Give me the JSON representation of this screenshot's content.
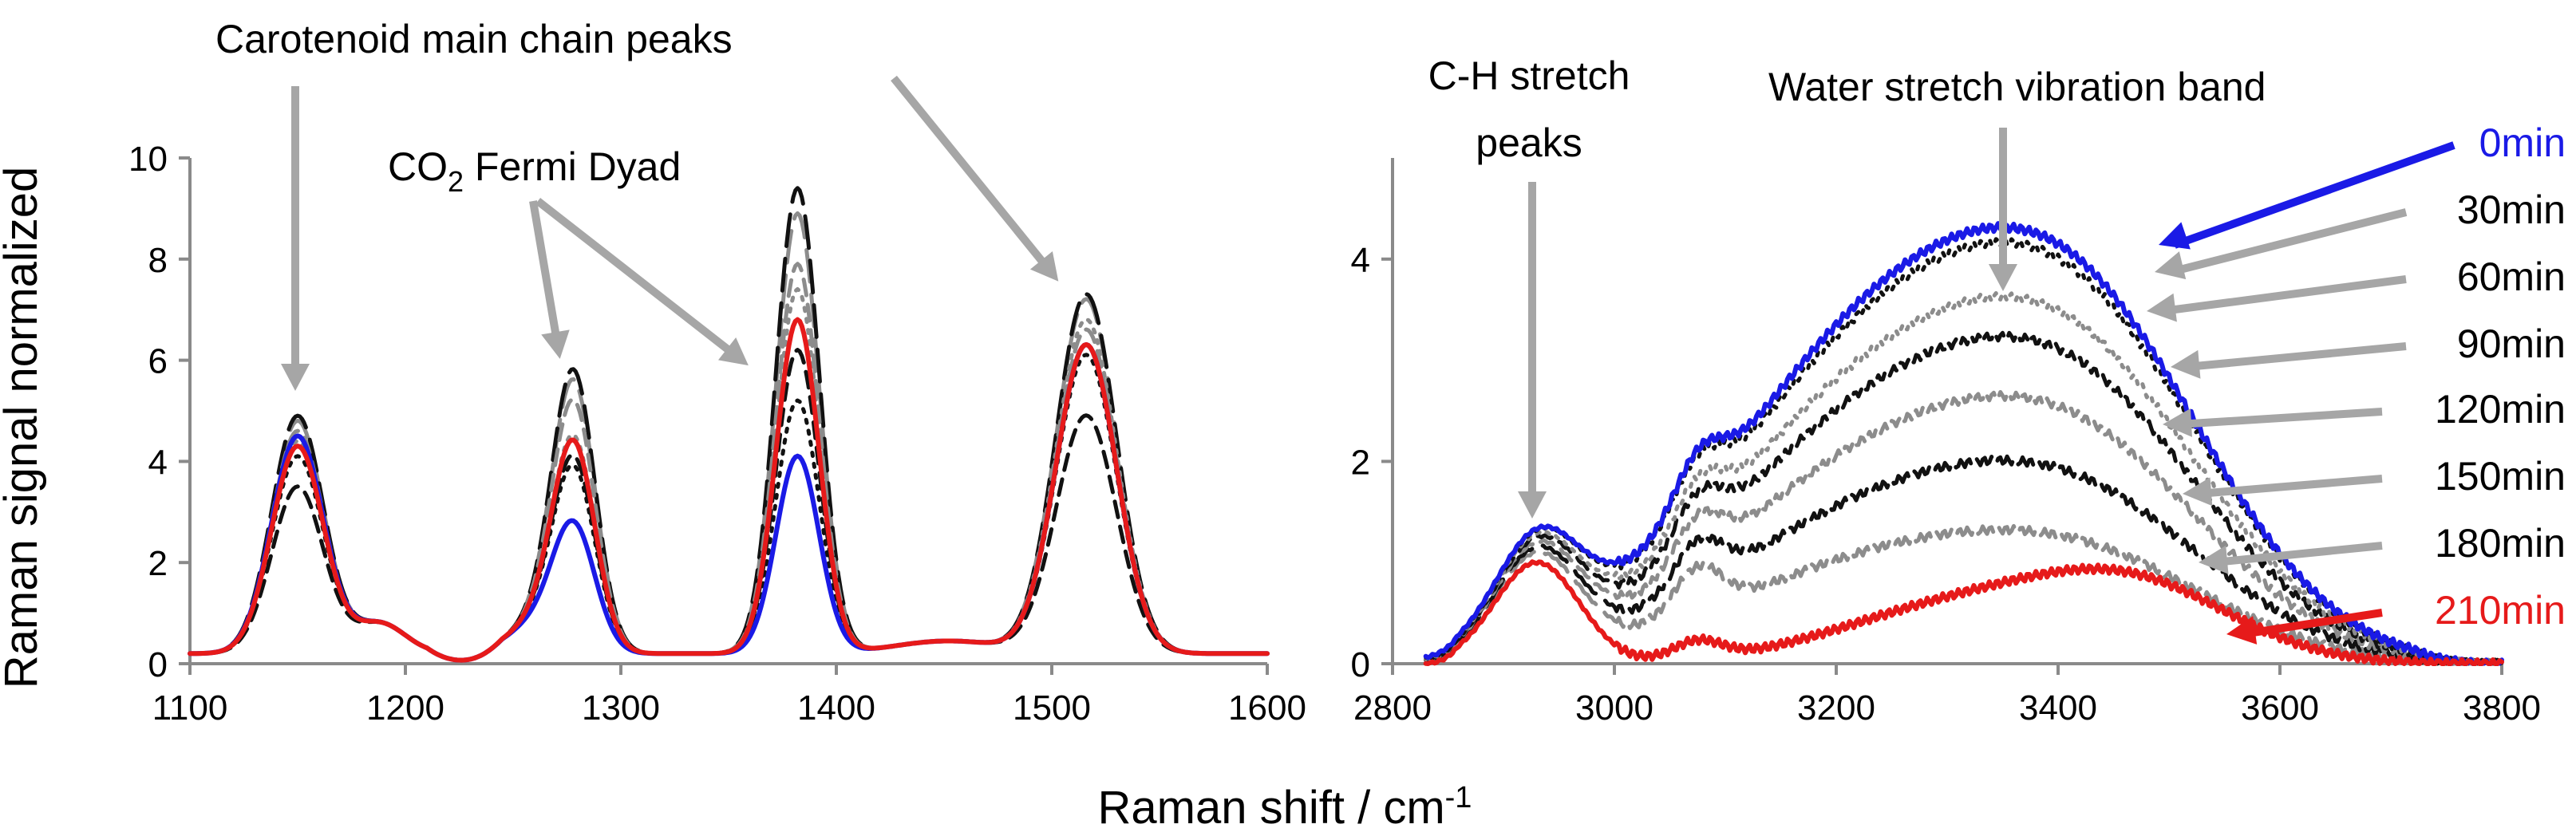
{
  "figure": {
    "y_axis_title": "Raman signal normalized",
    "x_axis_title": "Raman shift / cm",
    "x_axis_title_sup": "-1"
  },
  "colors": {
    "blue": "#1a1ae6",
    "red": "#e61a1a",
    "black": "#111111",
    "gray": "#8c8c8c",
    "arrow": "#a6a6a6"
  },
  "annotations": {
    "carotenoid": "Carotenoid main chain peaks",
    "co2_prefix": "CO",
    "co2_sub": "2",
    "co2_suffix": " Fermi Dyad",
    "ch_line1": "C-H stretch",
    "ch_line2": "peaks",
    "water": "Water stretch vibration band"
  },
  "chart_data": [
    {
      "type": "line",
      "title": "",
      "xlabel": "Raman shift / cm-1",
      "ylabel": "Raman signal normalized",
      "xlim": [
        1100,
        1600
      ],
      "ylim": [
        0,
        10
      ],
      "x_ticks": [
        1100,
        1200,
        1300,
        1400,
        1500,
        1600
      ],
      "y_ticks": [
        0,
        2,
        4,
        6,
        8,
        10
      ],
      "peaks_cm": [
        1150,
        1278,
        1382,
        1516
      ],
      "series": [
        {
          "name": "0min",
          "color": "blue",
          "style": "solid",
          "peak_heights": [
            4.3,
            2.5,
            3.9,
            6.1
          ]
        },
        {
          "name": "30min",
          "color": "black",
          "style": "dotted",
          "peak_heights": [
            3.9,
            3.6,
            5.0,
            5.9
          ]
        },
        {
          "name": "60min",
          "color": "gray",
          "style": "dotted",
          "peak_heights": [
            4.2,
            4.2,
            7.2,
            6.6
          ]
        },
        {
          "name": "90min",
          "color": "black",
          "style": "dashed",
          "peak_heights": [
            3.3,
            3.8,
            6.0,
            4.7
          ]
        },
        {
          "name": "120min",
          "color": "gray",
          "style": "dashed",
          "peak_heights": [
            4.4,
            4.9,
            7.7,
            6.4
          ]
        },
        {
          "name": "150min",
          "color": "black",
          "style": "long-dash",
          "peak_heights": [
            4.7,
            5.5,
            9.2,
            7.1
          ]
        },
        {
          "name": "180min",
          "color": "gray",
          "style": "long-dash",
          "peak_heights": [
            4.6,
            5.3,
            8.7,
            7.0
          ]
        },
        {
          "name": "210min",
          "color": "red",
          "style": "solid",
          "peak_heights": [
            4.1,
            4.1,
            6.6,
            6.1
          ]
        }
      ]
    },
    {
      "type": "line",
      "title": "",
      "xlabel": "Raman shift / cm-1",
      "ylabel": "",
      "xlim": [
        2800,
        3800
      ],
      "ylim": [
        0,
        5
      ],
      "x_ticks": [
        2800,
        3000,
        3200,
        3400,
        3600,
        3800
      ],
      "y_ticks": [
        0,
        2,
        4
      ],
      "series": [
        {
          "name": "0min",
          "color": "blue",
          "style": "solid",
          "band_max": 4.4,
          "label": "0min"
        },
        {
          "name": "30min",
          "color": "black",
          "style": "dotted",
          "band_max": 4.25,
          "label": "30min"
        },
        {
          "name": "60min",
          "color": "gray",
          "style": "dotted",
          "band_max": 3.7,
          "label": "60min"
        },
        {
          "name": "90min",
          "color": "black",
          "style": "dashed",
          "band_max": 3.3,
          "label": "90min"
        },
        {
          "name": "120min",
          "color": "gray",
          "style": "dashed",
          "band_max": 2.7,
          "label": "120min"
        },
        {
          "name": "150min",
          "color": "black",
          "style": "long-dash",
          "band_max": 2.05,
          "label": "150min"
        },
        {
          "name": "180min",
          "color": "gray",
          "style": "long-dash",
          "band_max": 1.35,
          "label": "180min"
        },
        {
          "name": "210min",
          "color": "red",
          "style": "solid",
          "band_max": 0.78,
          "label": "210min"
        }
      ]
    }
  ]
}
